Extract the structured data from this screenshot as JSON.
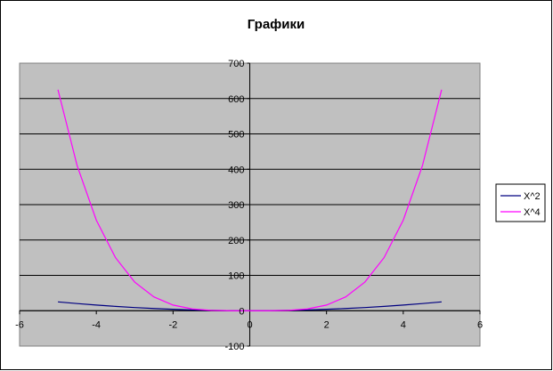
{
  "chart_data": {
    "type": "line",
    "title": "Графики",
    "xlabel": "",
    "ylabel": "",
    "xlim": [
      -6,
      6
    ],
    "ylim": [
      -100,
      700
    ],
    "x_ticks": [
      -6,
      -4,
      -2,
      0,
      2,
      4,
      6
    ],
    "y_ticks": [
      -100,
      0,
      100,
      200,
      300,
      400,
      500,
      600,
      700
    ],
    "grid": "horizontal",
    "legend_position": "right",
    "plot_background": "#c0c0c0",
    "series": [
      {
        "name": "X^2",
        "color": "#000080",
        "x": [
          -5,
          -4.5,
          -4,
          -3.5,
          -3,
          -2.5,
          -2,
          -1.5,
          -1,
          -0.5,
          0,
          0.5,
          1,
          1.5,
          2,
          2.5,
          3,
          3.5,
          4,
          4.5,
          5
        ],
        "values": [
          25,
          20.25,
          16,
          12.25,
          9,
          6.25,
          4,
          2.25,
          1,
          0.25,
          0,
          0.25,
          1,
          2.25,
          4,
          6.25,
          9,
          12.25,
          16,
          20.25,
          25
        ]
      },
      {
        "name": "X^4",
        "color": "#ff00ff",
        "x": [
          -5,
          -4.5,
          -4,
          -3.5,
          -3,
          -2.5,
          -2,
          -1.5,
          -1,
          -0.5,
          0,
          0.5,
          1,
          1.5,
          2,
          2.5,
          3,
          3.5,
          4,
          4.5,
          5
        ],
        "values": [
          625,
          410.06,
          256,
          150.06,
          81,
          39.06,
          16,
          5.06,
          1,
          0.06,
          0,
          0.06,
          1,
          5.06,
          16,
          39.06,
          81,
          150.06,
          256,
          410.06,
          625
        ]
      }
    ]
  }
}
